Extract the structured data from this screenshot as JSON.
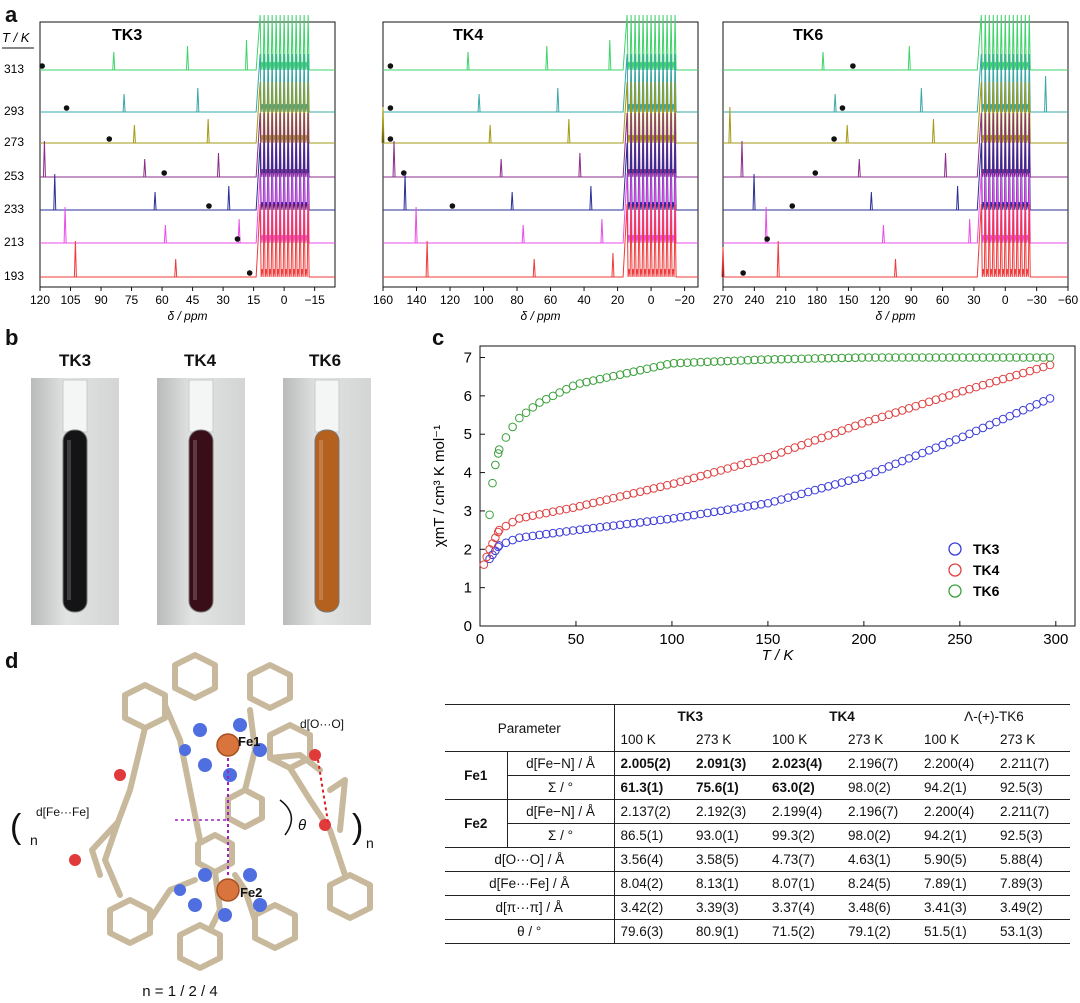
{
  "panel_letters": {
    "a": "a",
    "b": "b",
    "c": "c",
    "d": "d"
  },
  "panel_a": {
    "temp_axis_title": "T / K",
    "temperatures": [
      "313",
      "293",
      "273",
      "253",
      "233",
      "213",
      "193"
    ],
    "trace_colors": [
      "#3fd36b",
      "#3aa7a7",
      "#a49a16",
      "#8a2d8a",
      "#2a2f95",
      "#e84ee8",
      "#ef3b3b"
    ],
    "x_label": "δ / ppm",
    "spectra": [
      {
        "title": "TK3",
        "ticks": [
          "120",
          "105",
          "90",
          "75",
          "60",
          "45",
          "30",
          "15",
          "0",
          "−15"
        ],
        "dots_ppm": [
          116,
          104,
          83,
          56,
          34,
          20,
          14
        ]
      },
      {
        "title": "TK4",
        "ticks": [
          "160",
          "140",
          "120",
          "100",
          "80",
          "60",
          "40",
          "20",
          "0",
          "−20"
        ],
        "dots_ppm": [
          152,
          152,
          152,
          144,
          115,
          null,
          null
        ]
      },
      {
        "title": "TK6",
        "ticks": [
          "270",
          "240",
          "210",
          "180",
          "150",
          "120",
          "90",
          "60",
          "30",
          "0",
          "−30",
          "−60"
        ],
        "dots_ppm": [
          140,
          150,
          158,
          176,
          198,
          222,
          245
        ]
      }
    ]
  },
  "panel_b": {
    "labels": [
      "TK3",
      "TK4",
      "TK6"
    ],
    "colors": [
      "#141416",
      "#3a0e18",
      "#b4601f"
    ]
  },
  "chart_data": {
    "type": "scatter",
    "title": "",
    "xlabel": "T / K",
    "ylabel": "χmT / cm³ K mol⁻¹",
    "xlim": [
      0,
      310
    ],
    "ylim": [
      0,
      7.3
    ],
    "x_ticks": [
      "0",
      "50",
      "100",
      "150",
      "200",
      "250",
      "300"
    ],
    "y_ticks": [
      "0",
      "1",
      "2",
      "3",
      "4",
      "5",
      "6",
      "7"
    ],
    "legend_position": "bottom-right",
    "series": [
      {
        "name": "TK3",
        "color": "#3b3bdc",
        "points": [
          [
            5,
            1.75
          ],
          [
            10,
            2.1
          ],
          [
            20,
            2.3
          ],
          [
            50,
            2.5
          ],
          [
            100,
            2.8
          ],
          [
            150,
            3.2
          ],
          [
            200,
            3.9
          ],
          [
            250,
            4.9
          ],
          [
            300,
            6.0
          ]
        ]
      },
      {
        "name": "TK4",
        "color": "#e04040",
        "points": [
          [
            2,
            1.6
          ],
          [
            5,
            2.0
          ],
          [
            10,
            2.5
          ],
          [
            20,
            2.8
          ],
          [
            50,
            3.1
          ],
          [
            100,
            3.7
          ],
          [
            150,
            4.4
          ],
          [
            200,
            5.3
          ],
          [
            250,
            6.1
          ],
          [
            300,
            6.85
          ]
        ]
      },
      {
        "name": "TK6",
        "color": "#3aa03a",
        "points": [
          [
            5,
            2.9
          ],
          [
            7,
            4.0
          ],
          [
            10,
            4.6
          ],
          [
            15,
            5.05
          ],
          [
            20,
            5.4
          ],
          [
            30,
            5.8
          ],
          [
            50,
            6.3
          ],
          [
            100,
            6.85
          ],
          [
            150,
            6.95
          ],
          [
            200,
            7.0
          ],
          [
            250,
            7.0
          ],
          [
            300,
            7.0
          ]
        ]
      }
    ]
  },
  "panel_d": {
    "labels": {
      "fe1": "Fe1",
      "fe2": "Fe2",
      "d_oo": "d[O···O]",
      "d_fefe": "d[Fe···Fe]",
      "theta": "θ",
      "n_left": "n",
      "n_right": "n",
      "caption": "n = 1 / 2 / 4"
    },
    "table": {
      "header": {
        "parameter": "Parameter",
        "tk3": "TK3",
        "tk4": "TK4",
        "tk6": "Λ-(+)-TK6"
      },
      "temps": [
        "100 K",
        "273 K",
        "100 K",
        "273 K",
        "100 K",
        "273 K"
      ],
      "fe1_label": "Fe1",
      "fe2_label": "Fe2",
      "param_labels": {
        "dfen": "d[Fe−N] / Å",
        "sigma": "Σ / °",
        "doo": "d[O···O] / Å",
        "dfefe": "d[Fe···Fe] / Å",
        "dpipi": "d[π···π] / Å",
        "theta": "θ / °"
      },
      "fe1_dfen": [
        "2.005(2)",
        "2.091(3)",
        "2.023(4)",
        "2.196(7)",
        "2.200(4)",
        "2.211(7)"
      ],
      "fe1_sigma": [
        "61.3(1)",
        "75.6(1)",
        "63.0(2)",
        "98.0(2)",
        "94.2(1)",
        "92.5(3)"
      ],
      "fe2_dfen": [
        "2.137(2)",
        "2.192(3)",
        "2.199(4)",
        "2.196(7)",
        "2.200(4)",
        "2.211(7)"
      ],
      "fe2_sigma": [
        "86.5(1)",
        "93.0(1)",
        "99.3(2)",
        "98.0(2)",
        "94.2(1)",
        "92.5(3)"
      ],
      "doo": [
        "3.56(4)",
        "3.58(5)",
        "4.73(7)",
        "4.63(1)",
        "5.90(5)",
        "5.88(4)"
      ],
      "dfefe": [
        "8.04(2)",
        "8.13(1)",
        "8.07(1)",
        "8.24(5)",
        "7.89(1)",
        "7.89(3)"
      ],
      "dpipi": [
        "3.42(2)",
        "3.39(3)",
        "3.37(4)",
        "3.48(6)",
        "3.41(3)",
        "3.49(2)"
      ],
      "theta": [
        "79.6(3)",
        "80.9(1)",
        "71.5(2)",
        "79.1(2)",
        "51.5(1)",
        "53.1(3)"
      ]
    }
  }
}
